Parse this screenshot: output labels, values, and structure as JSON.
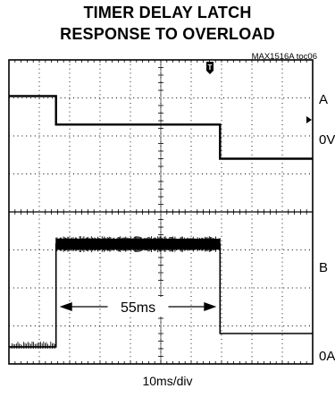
{
  "chart_data": {
    "type": "line",
    "title_lines": [
      "TIMER DELAY LATCH",
      "RESPONSE TO OVERLOAD"
    ],
    "figure_id": "MAX1516A toc06",
    "xlabel": "10ms/div",
    "grid": true,
    "x_divisions": 10,
    "y_divisions": 8,
    "channel_labels": [
      "A",
      "0V",
      "B",
      "0A"
    ],
    "annotation": "55ms",
    "trigger_marker": "T",
    "series": [
      {
        "name": "A",
        "x_div": [
          0,
          1.55,
          1.55,
          6.95,
          6.95,
          10
        ],
        "y_div": [
          0.95,
          0.95,
          1.7,
          1.7,
          2.6,
          2.6
        ]
      },
      {
        "name": "B",
        "x_div": [
          0,
          1.55,
          1.55,
          6.95,
          6.95,
          10
        ],
        "y_div": [
          7.55,
          7.55,
          4.85,
          4.85,
          7.2,
          7.2
        ]
      }
    ]
  }
}
